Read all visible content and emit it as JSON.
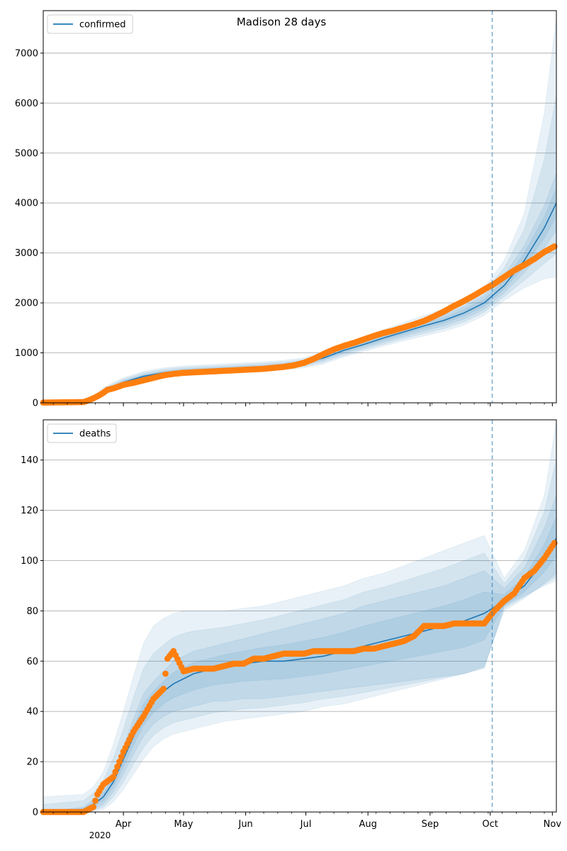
{
  "title": "Madison 28 days",
  "colors": {
    "model_line": "#1f77b4",
    "band": "#1f77b4",
    "observed": "#ff7f0e",
    "grid": "#b0b0b0",
    "cutoff_line": "#1f77b4"
  },
  "x_axis": {
    "month_labels": [
      "Apr",
      "May",
      "Jun",
      "Jul",
      "Aug",
      "Sep",
      "Oct",
      "Nov"
    ],
    "year_label": "2020"
  },
  "chart_data": [
    {
      "type": "line",
      "legend": [
        "confirmed"
      ],
      "legend_position": "top-left",
      "series": [
        {
          "name": "confirmed",
          "x_days": [
            0,
            20,
            25,
            30,
            35,
            40,
            50,
            60,
            70,
            80,
            90,
            100,
            110,
            120,
            130,
            140,
            150,
            160,
            170,
            180,
            190,
            200,
            210,
            220,
            230,
            240,
            250,
            256
          ],
          "values": [
            0,
            20,
            90,
            220,
            320,
            410,
            530,
            600,
            640,
            660,
            680,
            700,
            720,
            750,
            800,
            900,
            1050,
            1170,
            1300,
            1420,
            1540,
            1650,
            1800,
            2000,
            2350,
            2850,
            3500,
            4000
          ],
          "band_inner": [
            [
              0,
              0
            ],
            [
              15,
              25
            ],
            [
              75,
              105
            ],
            [
              190,
              250
            ],
            [
              285,
              355
            ],
            [
              370,
              450
            ],
            [
              490,
              570
            ],
            [
              560,
              640
            ],
            [
              600,
              680
            ],
            [
              620,
              700
            ],
            [
              640,
              720
            ],
            [
              660,
              740
            ],
            [
              680,
              760
            ],
            [
              710,
              790
            ],
            [
              760,
              840
            ],
            [
              850,
              950
            ],
            [
              990,
              1110
            ],
            [
              1100,
              1240
            ],
            [
              1220,
              1380
            ],
            [
              1330,
              1510
            ],
            [
              1440,
              1640
            ],
            [
              1540,
              1760
            ],
            [
              1680,
              1930
            ],
            [
              1870,
              2150
            ],
            [
              2200,
              2550
            ],
            [
              2600,
              3150
            ],
            [
              3100,
              3950
            ],
            [
              3450,
              4600
            ]
          ],
          "band_outer": [
            [
              0,
              0
            ],
            [
              5,
              40
            ],
            [
              55,
              130
            ],
            [
              150,
              300
            ],
            [
              240,
              410
            ],
            [
              320,
              500
            ],
            [
              440,
              630
            ],
            [
              510,
              700
            ],
            [
              550,
              740
            ],
            [
              570,
              760
            ],
            [
              590,
              780
            ],
            [
              610,
              800
            ],
            [
              630,
              820
            ],
            [
              660,
              850
            ],
            [
              700,
              900
            ],
            [
              780,
              1020
            ],
            [
              920,
              1190
            ],
            [
              1030,
              1320
            ],
            [
              1140,
              1470
            ],
            [
              1240,
              1610
            ],
            [
              1340,
              1750
            ],
            [
              1430,
              1880
            ],
            [
              1560,
              2060
            ],
            [
              1750,
              2300
            ],
            [
              2050,
              2850
            ],
            [
              2300,
              3800
            ],
            [
              2480,
              5800
            ],
            [
              2520,
              7700
            ]
          ]
        },
        {
          "name": "observed",
          "x_days": [
            0,
            20,
            22,
            25,
            28,
            30,
            32,
            35,
            38,
            40,
            45,
            50,
            55,
            60,
            65,
            70,
            75,
            80,
            85,
            90,
            95,
            100,
            105,
            110,
            115,
            120,
            125,
            130,
            135,
            140,
            145,
            150,
            155,
            160,
            165,
            170,
            175,
            180,
            185,
            190,
            195,
            200,
            205,
            210,
            215,
            220,
            225,
            230,
            235,
            240,
            245,
            250,
            255
          ],
          "values": [
            5,
            15,
            40,
            90,
            150,
            200,
            260,
            290,
            330,
            360,
            400,
            450,
            500,
            550,
            580,
            600,
            610,
            620,
            630,
            640,
            650,
            660,
            670,
            680,
            700,
            720,
            750,
            800,
            880,
            980,
            1070,
            1140,
            1200,
            1270,
            1340,
            1400,
            1450,
            1510,
            1570,
            1640,
            1730,
            1830,
            1940,
            2040,
            2150,
            2270,
            2380,
            2520,
            2650,
            2760,
            2880,
            3020,
            3130
          ]
        }
      ],
      "cutoff_day": 224,
      "ylim": [
        0,
        7850
      ],
      "yticks": [
        0,
        1000,
        2000,
        3000,
        4000,
        5000,
        6000,
        7000
      ],
      "grid": "horizontal"
    },
    {
      "type": "line",
      "legend": [
        "deaths"
      ],
      "legend_position": "top-left",
      "series": [
        {
          "name": "deaths",
          "x_days": [
            0,
            20,
            25,
            30,
            35,
            40,
            45,
            50,
            55,
            60,
            65,
            70,
            75,
            80,
            85,
            90,
            100,
            110,
            120,
            130,
            140,
            150,
            160,
            170,
            180,
            190,
            200,
            210,
            220,
            230,
            240,
            250,
            256
          ],
          "values": [
            0,
            1,
            3,
            6,
            12,
            21,
            30,
            39,
            44,
            48,
            51,
            53,
            55,
            56,
            57,
            58,
            59,
            60,
            60,
            61,
            62,
            64,
            66,
            68,
            70,
            72,
            74,
            76,
            79,
            84,
            90,
            100,
            109
          ],
          "band_inner": [
            [
              0,
              0
            ],
            [
              0,
              2
            ],
            [
              1,
              5
            ],
            [
              3,
              9
            ],
            [
              8,
              16
            ],
            [
              15,
              26
            ],
            [
              23,
              37
            ],
            [
              30,
              47
            ],
            [
              35,
              52
            ],
            [
              38,
              56
            ],
            [
              40,
              60
            ],
            [
              41,
              62
            ],
            [
              42,
              64
            ],
            [
              43,
              65
            ],
            [
              44,
              66
            ],
            [
              44,
              67
            ],
            [
              45,
              69
            ],
            [
              45,
              71
            ],
            [
              46,
              73
            ],
            [
              47,
              75
            ],
            [
              48,
              77
            ],
            [
              49,
              79
            ],
            [
              50,
              82
            ],
            [
              51,
              84
            ],
            [
              52,
              86
            ],
            [
              53,
              88
            ],
            [
              54,
              90
            ],
            [
              55,
              93
            ],
            [
              58,
              96
            ],
            [
              80,
              89
            ],
            [
              85,
              97
            ],
            [
              91,
              113
            ],
            [
              95,
              126
            ]
          ],
          "band_outer": [
            [
              0,
              6
            ],
            [
              0,
              7
            ],
            [
              0,
              10
            ],
            [
              1,
              16
            ],
            [
              4,
              27
            ],
            [
              9,
              40
            ],
            [
              15,
              54
            ],
            [
              21,
              67
            ],
            [
              26,
              74
            ],
            [
              29,
              77
            ],
            [
              31,
              79
            ],
            [
              32,
              80
            ],
            [
              33,
              80
            ],
            [
              34,
              80
            ],
            [
              35,
              80
            ],
            [
              36,
              80
            ],
            [
              37,
              81
            ],
            [
              38,
              82
            ],
            [
              39,
              84
            ],
            [
              40,
              86
            ],
            [
              42,
              88
            ],
            [
              43,
              90
            ],
            [
              45,
              93
            ],
            [
              47,
              95
            ],
            [
              49,
              98
            ],
            [
              51,
              101
            ],
            [
              53,
              104
            ],
            [
              55,
              107
            ],
            [
              57,
              110
            ],
            [
              82,
              93
            ],
            [
              86,
              104
            ],
            [
              90,
              126
            ],
            [
              92,
              155
            ]
          ]
        },
        {
          "name": "observed",
          "x_days": [
            0,
            20,
            25,
            27,
            30,
            35,
            40,
            45,
            50,
            55,
            60,
            62,
            65,
            70,
            75,
            80,
            85,
            90,
            95,
            100,
            105,
            110,
            115,
            120,
            125,
            130,
            135,
            140,
            145,
            150,
            155,
            160,
            165,
            170,
            175,
            180,
            185,
            190,
            195,
            200,
            205,
            210,
            215,
            220,
            225,
            230,
            235,
            240,
            245,
            250,
            255
          ],
          "values": [
            0,
            0,
            2,
            7,
            11,
            14,
            24,
            32,
            38,
            45,
            49,
            61,
            64,
            56,
            57,
            57,
            57,
            58,
            59,
            59,
            61,
            61,
            62,
            63,
            63,
            63,
            64,
            64,
            64,
            64,
            64,
            65,
            65,
            66,
            67,
            68,
            70,
            74,
            74,
            74,
            75,
            75,
            75,
            75,
            80,
            84,
            87,
            93,
            96,
            101,
            107
          ]
        }
      ],
      "cutoff_day": 224,
      "ylim": [
        0,
        156
      ],
      "yticks": [
        0,
        20,
        40,
        60,
        80,
        100,
        120,
        140
      ],
      "grid": "horizontal"
    }
  ]
}
